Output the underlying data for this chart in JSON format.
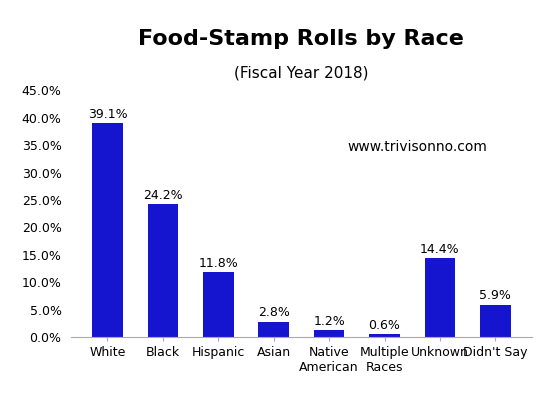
{
  "title": "Food-Stamp Rolls by Race",
  "subtitle": "(Fiscal Year 2018)",
  "watermark": "www.trivisonno.com",
  "categories": [
    "White",
    "Black",
    "Hispanic",
    "Asian",
    "Native\nAmerican",
    "Multiple\nRaces",
    "Unknown",
    "Didn't Say"
  ],
  "values": [
    39.1,
    24.2,
    11.8,
    2.8,
    1.2,
    0.6,
    14.4,
    5.9
  ],
  "bar_color": "#1515d0",
  "ylim": [
    0,
    45
  ],
  "yticks": [
    0,
    5,
    10,
    15,
    20,
    25,
    30,
    35,
    40,
    45
  ],
  "title_fontsize": 16,
  "subtitle_fontsize": 11,
  "label_fontsize": 9,
  "tick_fontsize": 9,
  "watermark_fontsize": 10,
  "background_color": "#ffffff"
}
